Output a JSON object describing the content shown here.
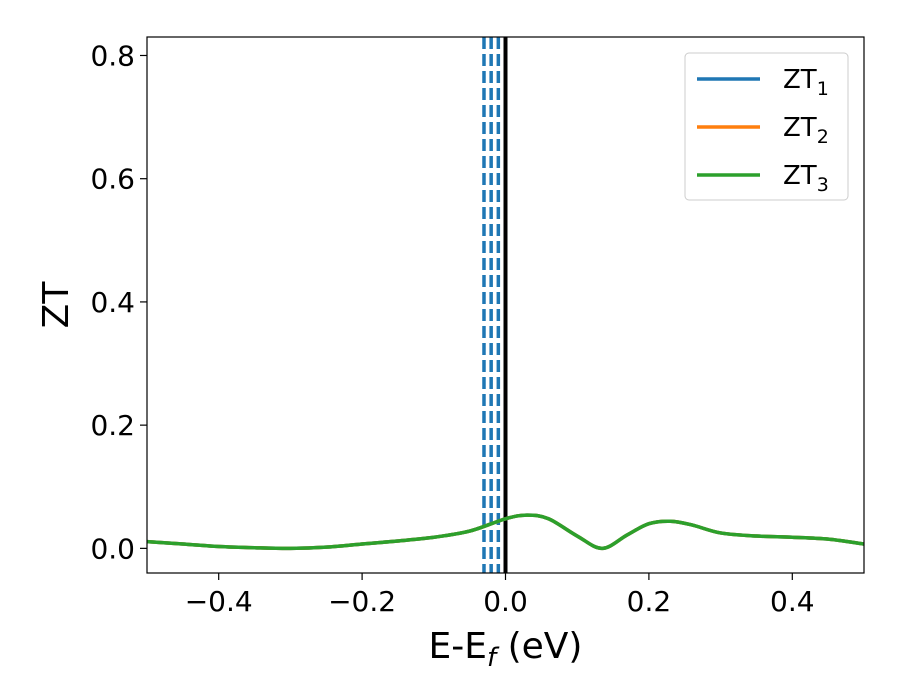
{
  "chart_data": {
    "type": "line",
    "title": "",
    "xlabel": "E-E",
    "xlabel_sub": "f",
    "xlabel_unit": " (eV)",
    "ylabel": "ZT",
    "xlim": [
      -0.5,
      0.5
    ],
    "ylim": [
      -0.04,
      0.83
    ],
    "x_ticks": [
      -0.4,
      -0.2,
      0.0,
      0.2,
      0.4
    ],
    "x_tick_labels": [
      "−0.4",
      "−0.2",
      "0.0",
      "0.2",
      "0.4"
    ],
    "y_ticks": [
      0.0,
      0.2,
      0.4,
      0.6,
      0.8
    ],
    "y_tick_labels": [
      "0.0",
      "0.2",
      "0.4",
      "0.6",
      "0.8"
    ],
    "grid": false,
    "legend_position": "top-right",
    "series": [
      {
        "name": "ZT",
        "sub": "1",
        "color": "#1f77b4",
        "x": [
          -0.5,
          -0.45,
          -0.4,
          -0.35,
          -0.3,
          -0.25,
          -0.2,
          -0.15,
          -0.1,
          -0.05,
          0.0,
          0.03,
          0.06,
          0.1,
          0.135,
          0.17,
          0.2,
          0.23,
          0.26,
          0.3,
          0.35,
          0.4,
          0.45,
          0.5
        ],
        "y": [
          0.011,
          0.007,
          0.003,
          0.001,
          0.0,
          0.002,
          0.007,
          0.012,
          0.018,
          0.028,
          0.048,
          0.054,
          0.048,
          0.02,
          0.0,
          0.022,
          0.04,
          0.044,
          0.038,
          0.025,
          0.02,
          0.018,
          0.015,
          0.007
        ]
      },
      {
        "name": "ZT",
        "sub": "2",
        "color": "#ff7f0e",
        "x": [
          -0.5,
          -0.45,
          -0.4,
          -0.35,
          -0.3,
          -0.25,
          -0.2,
          -0.15,
          -0.1,
          -0.05,
          0.0,
          0.03,
          0.06,
          0.1,
          0.135,
          0.17,
          0.2,
          0.23,
          0.26,
          0.3,
          0.35,
          0.4,
          0.45,
          0.5
        ],
        "y": [
          0.011,
          0.007,
          0.003,
          0.001,
          0.0,
          0.002,
          0.007,
          0.012,
          0.018,
          0.028,
          0.048,
          0.054,
          0.048,
          0.02,
          0.0,
          0.022,
          0.04,
          0.044,
          0.038,
          0.025,
          0.02,
          0.018,
          0.015,
          0.007
        ]
      },
      {
        "name": "ZT",
        "sub": "3",
        "color": "#2ca02c",
        "x": [
          -0.5,
          -0.45,
          -0.4,
          -0.35,
          -0.3,
          -0.25,
          -0.2,
          -0.15,
          -0.1,
          -0.05,
          0.0,
          0.03,
          0.06,
          0.1,
          0.135,
          0.17,
          0.2,
          0.23,
          0.26,
          0.3,
          0.35,
          0.4,
          0.45,
          0.5
        ],
        "y": [
          0.011,
          0.007,
          0.003,
          0.001,
          0.0,
          0.002,
          0.007,
          0.012,
          0.018,
          0.028,
          0.048,
          0.054,
          0.048,
          0.02,
          0.0,
          0.022,
          0.04,
          0.044,
          0.038,
          0.025,
          0.02,
          0.018,
          0.015,
          0.007
        ]
      }
    ],
    "vlines": [
      {
        "x": -0.03,
        "style": "dashed",
        "color": "#1f77b4"
      },
      {
        "x": -0.02,
        "style": "dashed",
        "color": "#1f77b4"
      },
      {
        "x": -0.01,
        "style": "dashed",
        "color": "#1f77b4"
      },
      {
        "x": 0.0,
        "style": "solid",
        "color": "#000000"
      }
    ]
  }
}
